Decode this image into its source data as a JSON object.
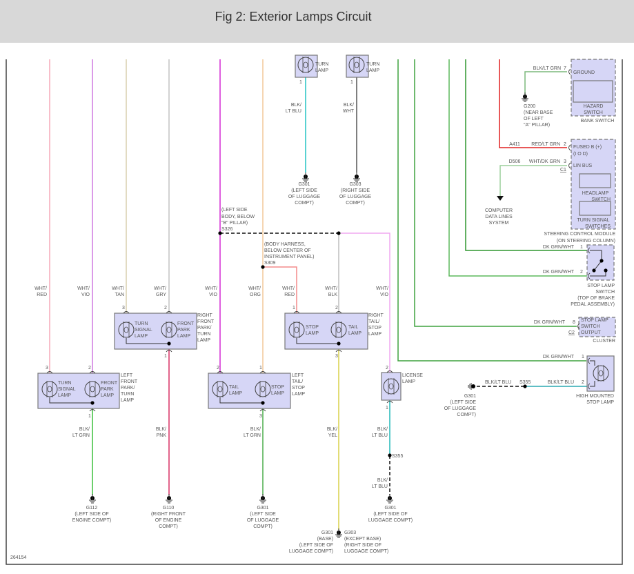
{
  "title": "Fig 2: Exterior Lamps Circuit",
  "figure_id": "264154",
  "colors": {
    "header_bg": "#d8d8d8",
    "component_fill": "#d6d6f6",
    "dk_grn_wht": "#3fa23f",
    "red_lt_grn": "#e02020"
  },
  "top_lamps": [
    {
      "label": [
        "TURN",
        "LAMP"
      ],
      "pin": "1",
      "wire": [
        "BLK/",
        "LT BLU"
      ],
      "ground": [
        "G301",
        "(LEFT SIDE",
        "OF LUGGAGE",
        "COMPT)"
      ]
    },
    {
      "label": [
        "TURN",
        "LAMP"
      ],
      "pin": "1",
      "wire": [
        "BLK/",
        "WHT"
      ],
      "ground": [
        "G303",
        "(RIGHT SIDE",
        "OF LUGGAGE",
        "COMPT)"
      ]
    }
  ],
  "splices": {
    "s326": [
      "(LEFT SIDE",
      "BODY, BELOW",
      "\"B\" PILLAR)",
      "S326"
    ],
    "s309": [
      "(BODY HARNESS,",
      "BELOW CENTER OF",
      "INSTRUMENT PANEL)",
      "S309"
    ],
    "s355": "S355"
  },
  "feed_wires": [
    [
      "WHT/",
      "RED"
    ],
    [
      "WHT/",
      "VIO"
    ],
    [
      "WHT/",
      "TAN"
    ],
    [
      "WHT/",
      "GRY"
    ],
    [
      "WHT/",
      "VIO"
    ],
    [
      "WHT/",
      "ORG"
    ],
    [
      "WHT/",
      "RED"
    ],
    [
      "WHT/",
      "BLK"
    ],
    [
      "WHT/",
      "VIO"
    ]
  ],
  "lamps": {
    "left_front": {
      "name": [
        "LEFT",
        "FRONT",
        "PARK/",
        "TURN",
        "LAMP"
      ],
      "bulbs": [
        [
          "TURN",
          "SIGNAL",
          "LAMP"
        ],
        [
          "FRONT",
          "PARK",
          "LAMP"
        ]
      ],
      "pins_in": [
        "3",
        "2"
      ],
      "pin_out": "1"
    },
    "right_front": {
      "name": [
        "RIGHT",
        "FRONT",
        "PARK/",
        "TURN",
        "LAMP"
      ],
      "bulbs": [
        [
          "TURN",
          "SIGNAL",
          "LAMP"
        ],
        [
          "FRONT",
          "PARK",
          "LAMP"
        ]
      ],
      "pins_in": [
        "3",
        "2"
      ],
      "pin_out": "1"
    },
    "left_tail": {
      "name": [
        "LEFT",
        "TAIL/",
        "STOP",
        "LAMP"
      ],
      "bulbs": [
        [
          "TAIL",
          "LAMP"
        ],
        [
          "STOP",
          "LAMP"
        ]
      ],
      "pins_in": [
        "2",
        "1"
      ],
      "pin_out": "3"
    },
    "right_tail": {
      "name": [
        "RIGHT",
        "TAIL/",
        "STOP",
        "LAMP"
      ],
      "bulbs": [
        [
          "STOP",
          "LAMP"
        ],
        [
          "TAIL",
          "LAMP"
        ]
      ],
      "pins_in": [
        "1",
        "2"
      ],
      "pin_out": "3"
    },
    "license": {
      "name": [
        "LICENSE",
        "LAMP"
      ],
      "pin_in": "2",
      "pin_out": "1"
    }
  },
  "ground_wires": [
    [
      "BLK/",
      "LT GRN"
    ],
    [
      "BLK/",
      "PNK"
    ],
    [
      "BLK/",
      "LT GRN"
    ],
    [
      "BLK/",
      "YEL"
    ],
    [
      "BLK/",
      "LT BLU"
    ],
    [
      "BLK/",
      "LT BLU"
    ]
  ],
  "grounds": {
    "g112": [
      "G112",
      "(LEFT SIDE OF",
      "ENGINE COMPT)"
    ],
    "g110": [
      "G110",
      "(RIGHT FRONT",
      "OF ENGINE",
      "COMPT)"
    ],
    "g301_left_tail": [
      "G301",
      "(LEFT SIDE",
      "OF LUGGAGE",
      "COMPT)"
    ],
    "g301_base": [
      "G301",
      "(BASE)",
      "(LEFT SIDE OF",
      "LUGGAGE COMPT)"
    ],
    "g303_except": [
      "G303",
      "(EXCEPT BASE)",
      "(RIGHT SIDE OF",
      "LUGGAGE COMPT)"
    ],
    "g301_license": [
      "G301",
      "(LEFT SIDE OF",
      "LUGGAGE COMPT)"
    ],
    "g301_hmsl": [
      "G301",
      "(LEFT SIDE",
      "OF LUGGAGE",
      "COMPT)"
    ],
    "g200": [
      "G200",
      "(NEAR BASE",
      "OF LEFT",
      "\"A\" PILLAR)"
    ]
  },
  "bank_switch": {
    "ground_wire": "BLK/LT GRN",
    "ground_pin": "7",
    "ground_label": "GROUND",
    "inner": [
      "HAZARD",
      "SWITCH"
    ],
    "name": "BANK SWITCH"
  },
  "scm": {
    "circuit_a": "A411",
    "wire_a": "RED/LT GRN",
    "pin_a": "2",
    "label_a": [
      "FUSED B (+)",
      "(I O D)"
    ],
    "circuit_d": "D506",
    "wire_d": "WHT/DK GRN",
    "pin_d": "3",
    "label_d": "LIN BUS",
    "connector": "C1",
    "headlamp": [
      "HEADLAMP",
      "SWITCH"
    ],
    "turn": [
      "TURN SIGNAL",
      "SWITCHES"
    ],
    "name": [
      "STEERING CONTROL MODULE",
      "(ON STEERING COLUMN)"
    ],
    "data_lines": [
      "COMPUTER",
      "DATA LINES",
      "SYSTEM"
    ]
  },
  "stop_lamp_switch": {
    "wire1": "DK GRN/WHT",
    "pin1": "1",
    "wire2": "DK GRN/WHT",
    "pin2": "2",
    "name": [
      "STOP LAMP",
      "SWITCH",
      "(TOP OF BRAKE",
      "PEDAL ASSEMBLY)"
    ]
  },
  "cluster": {
    "wire": "DK GRN/WHT",
    "pin": "8",
    "connector": "C2",
    "inner": [
      "STOP LAMP",
      "SWITCH",
      "OUTPUT"
    ],
    "name": "CLUSTER"
  },
  "hmsl": {
    "wire1": "DK GRN/WHT",
    "pin1": "1",
    "wire2": "BLK/LT BLU",
    "pin2": "2",
    "wire_ground": "BLK/LT BLU",
    "name": [
      "HIGH MOUNTED",
      "STOP LAMP"
    ]
  }
}
